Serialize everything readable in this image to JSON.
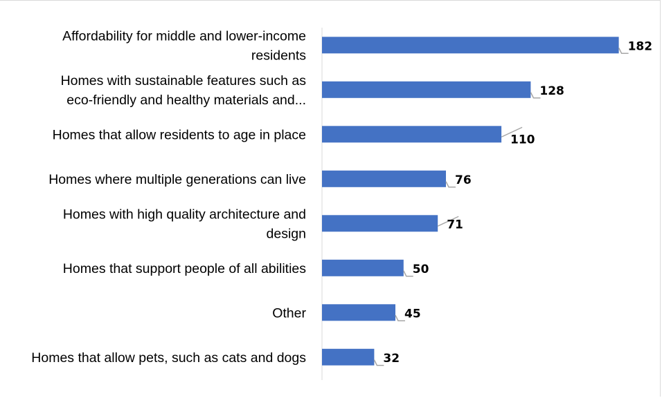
{
  "chart_data": {
    "type": "bar",
    "orientation": "horizontal",
    "categories": [
      [
        "Affordability for middle and lower-income",
        "residents"
      ],
      [
        "Homes with sustainable features such as",
        "eco-friendly and healthy materials and..."
      ],
      [
        "Homes that allow residents to age in place"
      ],
      [
        "Homes where multiple generations can live"
      ],
      [
        "Homes with high quality architecture and",
        "design"
      ],
      [
        "Homes that support people of all abilities"
      ],
      [
        "Other"
      ],
      [
        "Homes that allow pets, such as cats and dogs"
      ]
    ],
    "values": [
      182,
      128,
      110,
      76,
      71,
      50,
      45,
      32
    ],
    "data_labels": [
      "182",
      "128",
      "110",
      "76",
      "71",
      "50",
      "45",
      "32"
    ],
    "xlim": [
      0,
      200
    ],
    "bar_color": "#4472c4",
    "leader_line_color": "#a6a6a6",
    "grid": false,
    "legend": "none"
  }
}
